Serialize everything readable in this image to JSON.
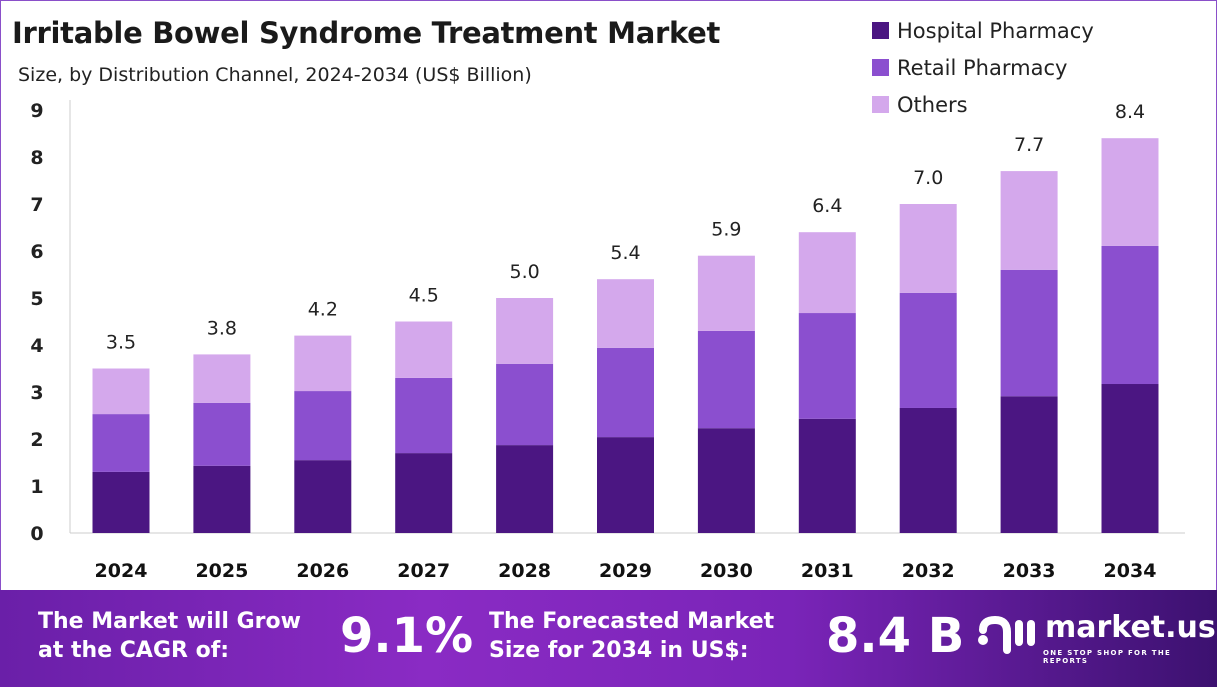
{
  "header": {
    "title": "Irritable Bowel Syndrome Treatment Market",
    "subtitle": "Size, by Distribution Channel, 2024-2034 (US$ Billion)"
  },
  "chart_data": {
    "type": "bar",
    "stacked": true,
    "title": "Irritable Bowel Syndrome Treatment Market",
    "subtitle": "Size, by Distribution Channel, 2024-2034 (US$ Billion)",
    "categories": [
      "2024",
      "2025",
      "2026",
      "2027",
      "2028",
      "2029",
      "2030",
      "2031",
      "2032",
      "2033",
      "2034"
    ],
    "series": [
      {
        "name": "Hospital Pharmacy",
        "color": "#4b1682",
        "values": [
          1.3,
          1.43,
          1.55,
          1.7,
          1.87,
          2.04,
          2.23,
          2.43,
          2.66,
          2.91,
          3.17
        ]
      },
      {
        "name": "Retail Pharmacy",
        "color": "#8b4fcf",
        "values": [
          1.23,
          1.34,
          1.47,
          1.6,
          1.73,
          1.9,
          2.07,
          2.25,
          2.45,
          2.69,
          2.94
        ]
      },
      {
        "name": "Others",
        "color": "#d4a8ec",
        "values": [
          0.97,
          1.03,
          1.18,
          1.2,
          1.4,
          1.46,
          1.6,
          1.72,
          1.89,
          2.1,
          2.29
        ]
      }
    ],
    "totals": [
      "3.5",
      "3.8",
      "4.2",
      "4.5",
      "5.0",
      "5.4",
      "5.9",
      "6.4",
      "7.0",
      "7.7",
      "8.4"
    ],
    "yticks": [
      "0",
      "1",
      "2",
      "3",
      "4",
      "5",
      "6",
      "7",
      "8",
      "9"
    ],
    "ylim": [
      0,
      9
    ],
    "grid": false,
    "legend": "top-right"
  },
  "banner": {
    "cagr_label": "The Market will Grow at the CAGR of:",
    "cagr_value": "9.1%",
    "forecast_label": "The Forecasted Market Size for 2034 in US$:",
    "forecast_value": "8.4 B",
    "logo_name": "market.us",
    "logo_tagline": "ONE STOP SHOP FOR THE REPORTS"
  }
}
